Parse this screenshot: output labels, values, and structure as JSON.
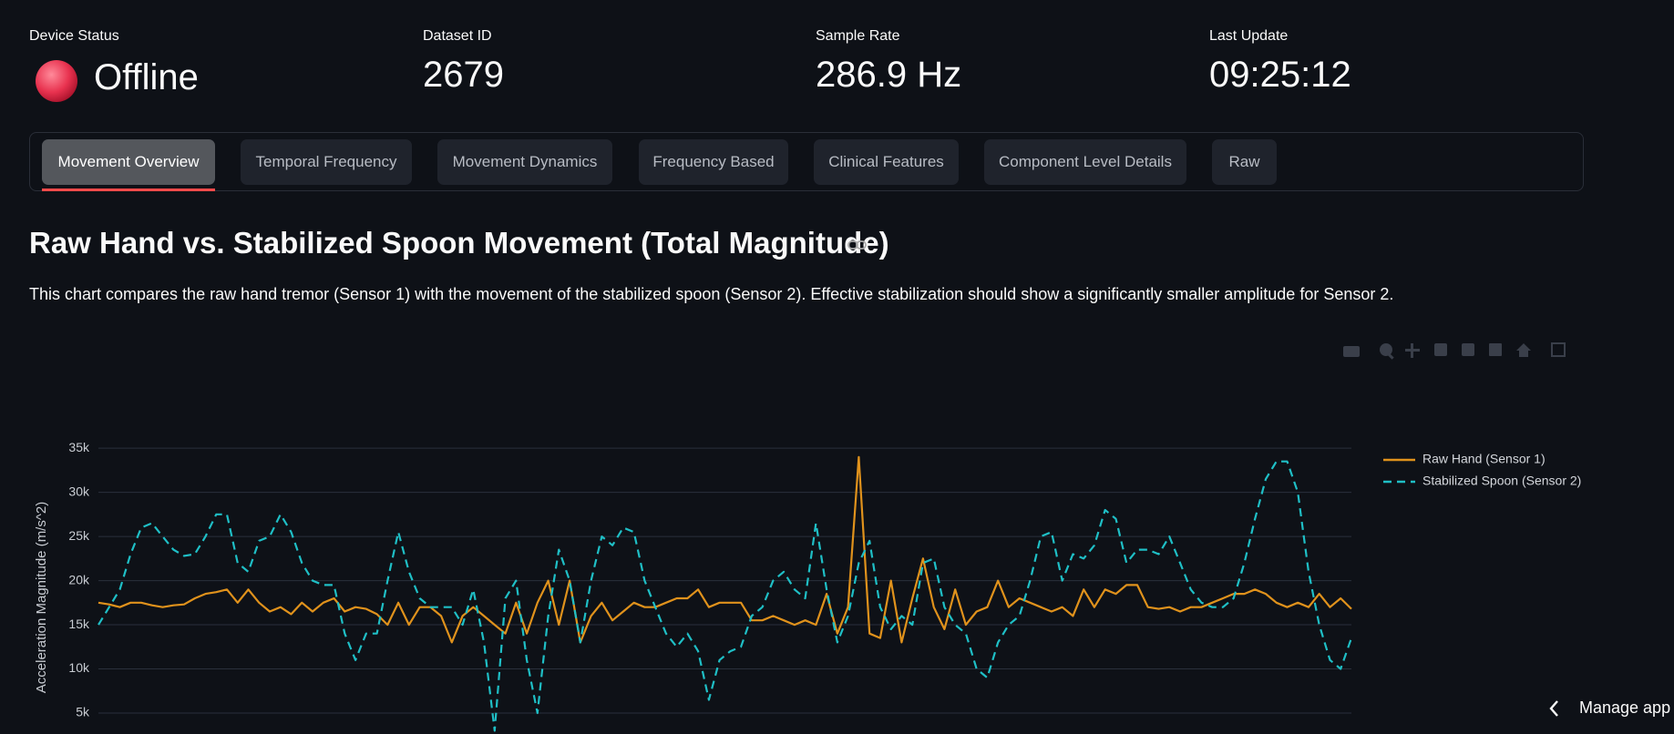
{
  "metrics": [
    {
      "label": "Device Status",
      "value": "Offline"
    },
    {
      "label": "Dataset ID",
      "value": "2679"
    },
    {
      "label": "Sample Rate",
      "value": "286.9 Hz"
    },
    {
      "label": "Last Update",
      "value": "09:25:12"
    }
  ],
  "tabs": [
    "Movement Overview",
    "Temporal Frequency",
    "Movement Dynamics",
    "Frequency Based",
    "Clinical Features",
    "Component Level Details",
    "Raw"
  ],
  "section": {
    "heading": "Raw Hand vs. Stabilized Spoon Movement (Total Magnitude)",
    "description": "This chart compares the raw hand tremor (Sensor 1) with the movement of the stabilized spoon (Sensor 2). Effective stabilization should show a significantly smaller amplitude for Sensor 2."
  },
  "manage_app": "Manage app",
  "chart_data": {
    "type": "line",
    "y_label": "Acceleration Magnitude (m/s^2)",
    "ylim": [
      0,
      36250
    ],
    "yticks": [
      {
        "value": 5000,
        "label": "5k"
      },
      {
        "value": 10000,
        "label": "10k"
      },
      {
        "value": 15000,
        "label": "15k"
      },
      {
        "value": 20000,
        "label": "20k"
      },
      {
        "value": 25000,
        "label": "25k"
      },
      {
        "value": 30000,
        "label": "30k"
      },
      {
        "value": 35000,
        "label": "35k"
      }
    ],
    "grid": true,
    "legend": "right",
    "series": [
      {
        "name": "Raw Hand (Sensor 1)",
        "color": "#e0921c",
        "dash": "solid",
        "values": [
          17500,
          17300,
          17000,
          17500,
          17500,
          17200,
          17000,
          17200,
          17300,
          18000,
          18500,
          18700,
          19000,
          17500,
          19000,
          17500,
          16500,
          17000,
          16200,
          17500,
          16500,
          17500,
          18000,
          16500,
          17000,
          16800,
          16200,
          15000,
          17500,
          15000,
          17000,
          17000,
          16000,
          13000,
          16000,
          17000,
          16000,
          15000,
          14000,
          17500,
          14000,
          17500,
          20000,
          15000,
          20000,
          13000,
          16000,
          17500,
          15500,
          16500,
          17500,
          17000,
          17000,
          17500,
          18000,
          18000,
          19000,
          17000,
          17500,
          17500,
          17500,
          15500,
          15500,
          16000,
          15500,
          15000,
          15500,
          15000,
          18500,
          14000,
          17000,
          34000,
          14000,
          13500,
          20000,
          13000,
          18000,
          22500,
          17000,
          14500,
          19000,
          15000,
          16500,
          17000,
          20000,
          17000,
          18000,
          17500,
          17000,
          16500,
          17000,
          16000,
          19000,
          17000,
          19000,
          18500,
          19500,
          19500,
          17000,
          16800,
          17000,
          16500,
          17000,
          17000,
          17500,
          18000,
          18500,
          18500,
          19000,
          18500,
          17500,
          17000,
          17500,
          17000,
          18500,
          17000,
          18000,
          16800
        ]
      },
      {
        "name": "Stabilized Spoon (Sensor 2)",
        "color": "#1fbfc6",
        "dash": "dashed",
        "values": [
          15000,
          17000,
          19000,
          23000,
          26000,
          26500,
          25000,
          23500,
          22800,
          23000,
          25000,
          27500,
          27500,
          22000,
          21000,
          24500,
          25000,
          27500,
          25500,
          22000,
          20000,
          19500,
          19500,
          14000,
          11000,
          14000,
          14000,
          20000,
          25500,
          21000,
          18000,
          17000,
          17000,
          17000,
          15000,
          19000,
          13000,
          3000,
          18000,
          20000,
          11000,
          5000,
          16000,
          23500,
          20000,
          13000,
          20000,
          25000,
          24000,
          26000,
          25500,
          20000,
          17000,
          14000,
          12500,
          14000,
          12000,
          6500,
          11000,
          12000,
          12500,
          16000,
          17000,
          20000,
          21000,
          19000,
          18000,
          26500,
          19000,
          13000,
          16000,
          22000,
          24500,
          17000,
          14500,
          16000,
          15000,
          22000,
          22500,
          17000,
          15000,
          14000,
          10000,
          9000,
          13000,
          15000,
          16000,
          20000,
          25000,
          25500,
          20000,
          23000,
          22500,
          24000,
          28000,
          27000,
          22000,
          23500,
          23500,
          23000,
          25000,
          22000,
          19000,
          17500,
          17000,
          17000,
          18000,
          22000,
          27000,
          31500,
          33500,
          33500,
          30000,
          21000,
          15000,
          11000,
          10000,
          13500
        ]
      }
    ]
  }
}
